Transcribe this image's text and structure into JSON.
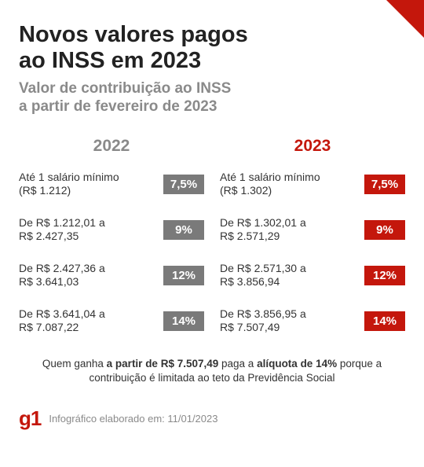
{
  "accent_color": "#c4170c",
  "gray_color": "#7a7a7a",
  "header": {
    "title_line1": "Novos valores pagos",
    "title_line2": "ao INSS em 2023",
    "subtitle_line1": "Valor de contribuição ao INSS",
    "subtitle_line2": "a partir de fevereiro de 2023"
  },
  "columns": {
    "a": {
      "year": "2022",
      "rows": [
        {
          "range_l1": "Até 1 salário mínimo",
          "range_l2": "(R$ 1.212)",
          "rate": "7,5%"
        },
        {
          "range_l1": "De R$ 1.212,01 a",
          "range_l2": "R$ 2.427,35",
          "rate": "9%"
        },
        {
          "range_l1": "De R$ 2.427,36 a",
          "range_l2": "R$ 3.641,03",
          "rate": "12%"
        },
        {
          "range_l1": "De R$ 3.641,04 a",
          "range_l2": "R$ 7.087,22",
          "rate": "14%"
        }
      ]
    },
    "b": {
      "year": "2023",
      "rows": [
        {
          "range_l1": "Até 1 salário mínimo",
          "range_l2": "(R$ 1.302)",
          "rate": "7,5%"
        },
        {
          "range_l1": "De R$ 1.302,01 a",
          "range_l2": "R$ 2.571,29",
          "rate": "9%"
        },
        {
          "range_l1": "De R$ 2.571,30 a",
          "range_l2": "R$ 3.856,94",
          "rate": "12%"
        },
        {
          "range_l1": "De R$ 3.856,95 a",
          "range_l2": "R$ 7.507,49",
          "rate": "14%"
        }
      ]
    }
  },
  "note": {
    "pre": "Quem ganha ",
    "b1": "a partir de R$ 7.507,49",
    "mid": " paga a ",
    "b2": "alíquota de 14%",
    "post": " porque a contribuição é limitada ao teto da Previdência Social"
  },
  "footer": {
    "logo": "g1",
    "credit": "Infográfico elaborado em: 11/01/2023"
  }
}
